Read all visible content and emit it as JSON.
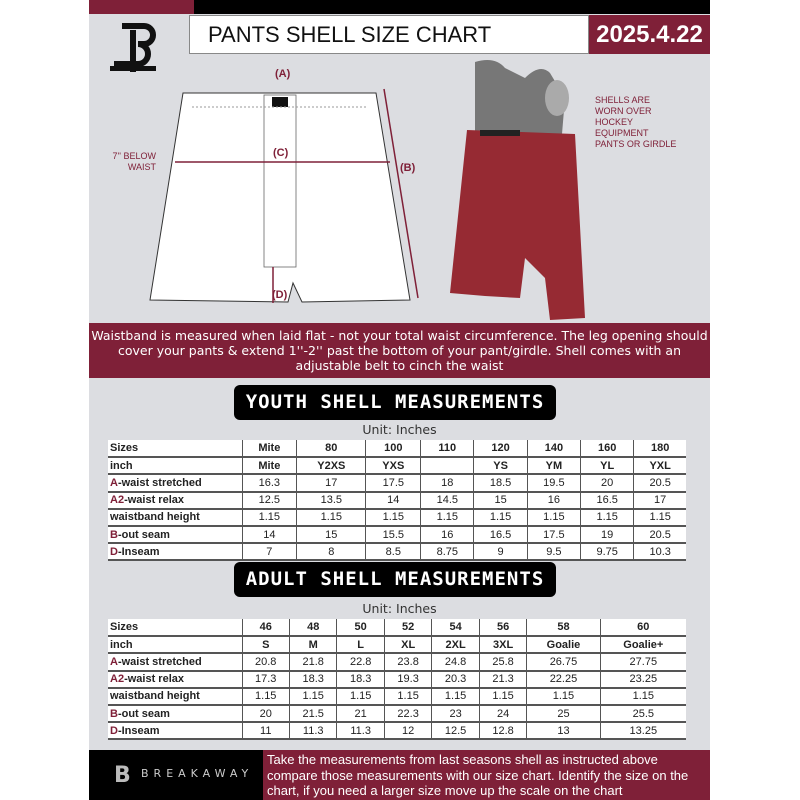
{
  "header": {
    "title": "PANTS SHELL SIZE CHART",
    "date": "2025.4.22",
    "logo": "B"
  },
  "diagram": {
    "label_a": "(A)",
    "label_b": "(B)",
    "label_c": "(C)",
    "label_d": "(D)",
    "below_waist_note": "7'' BELOW WAIST",
    "worn_note": "SHELLS ARE WORN OVER HOCKEY EQUIPMENT PANTS OR GIRDLE"
  },
  "banner": {
    "text": "Waistband is measured when laid flat - not your total waist circumference. The leg opening should cover your pants & extend 1''-2'' past the bottom of your pant/girdle. Shell comes with an adjustable belt to cinch the waist"
  },
  "youth": {
    "title": "YOUTH SHELL MEASUREMENTS",
    "unit": "Unit: Inches",
    "rows": [
      {
        "label": "Sizes",
        "values": [
          "Mite",
          "80",
          "100",
          "110",
          "120",
          "140",
          "160",
          "180"
        ]
      },
      {
        "label": "inch",
        "values": [
          "Mite",
          "Y2XS",
          "YXS",
          "",
          "YS",
          "YM",
          "YL",
          "YXL"
        ]
      },
      {
        "mark": "A",
        "label": "-waist stretched",
        "values": [
          "16.3",
          "17",
          "17.5",
          "18",
          "18.5",
          "19.5",
          "20",
          "20.5"
        ]
      },
      {
        "mark": "A2",
        "label": "-waist relax",
        "values": [
          "12.5",
          "13.5",
          "14",
          "14.5",
          "15",
          "16",
          "16.5",
          "17"
        ]
      },
      {
        "label": "waistband height",
        "values": [
          "1.15",
          "1.15",
          "1.15",
          "1.15",
          "1.15",
          "1.15",
          "1.15",
          "1.15"
        ]
      },
      {
        "mark": "B",
        "label": "-out seam",
        "values": [
          "14",
          "15",
          "15.5",
          "16",
          "16.5",
          "17.5",
          "19",
          "20.5"
        ]
      },
      {
        "mark": "D",
        "label": "-Inseam",
        "values": [
          "7",
          "8",
          "8.5",
          "8.75",
          "9",
          "9.5",
          "9.75",
          "10.3"
        ]
      }
    ]
  },
  "adult": {
    "title": "ADULT SHELL MEASUREMENTS",
    "unit": "Unit: Inches",
    "rows": [
      {
        "label": "Sizes",
        "values": [
          "46",
          "48",
          "50",
          "52",
          "54",
          "56",
          "58",
          "60"
        ]
      },
      {
        "label": "inch",
        "values": [
          "S",
          "M",
          "L",
          "XL",
          "2XL",
          "3XL",
          "Goalie",
          "Goalie+"
        ]
      },
      {
        "mark": "A",
        "label": "-waist stretched",
        "values": [
          "20.8",
          "21.8",
          "22.8",
          "23.8",
          "24.8",
          "25.8",
          "26.75",
          "27.75"
        ]
      },
      {
        "mark": "A2",
        "label": "-waist relax",
        "values": [
          "17.3",
          "18.3",
          "18.3",
          "19.3",
          "20.3",
          "21.3",
          "22.25",
          "23.25"
        ]
      },
      {
        "label": "waistband height",
        "values": [
          "1.15",
          "1.15",
          "1.15",
          "1.15",
          "1.15",
          "1.15",
          "1.15",
          "1.15"
        ]
      },
      {
        "mark": "B",
        "label": "-out seam",
        "values": [
          "20",
          "21.5",
          "21",
          "22.3",
          "23",
          "24",
          "25",
          "25.5"
        ]
      },
      {
        "mark": "D",
        "label": "-Inseam",
        "values": [
          "11",
          "11.3",
          "11.3",
          "12",
          "12.5",
          "12.8",
          "13",
          "13.25"
        ]
      }
    ]
  },
  "footer": {
    "brand": "BREAKAWAY",
    "text": "Take the measurements from last seasons shell as instructed above compare those measurements  with our size chart. Identify the size on the chart, if you need a larger size move up the scale on the chart"
  },
  "colors": {
    "accent": "#7f2038",
    "background": "#dcdde1"
  }
}
